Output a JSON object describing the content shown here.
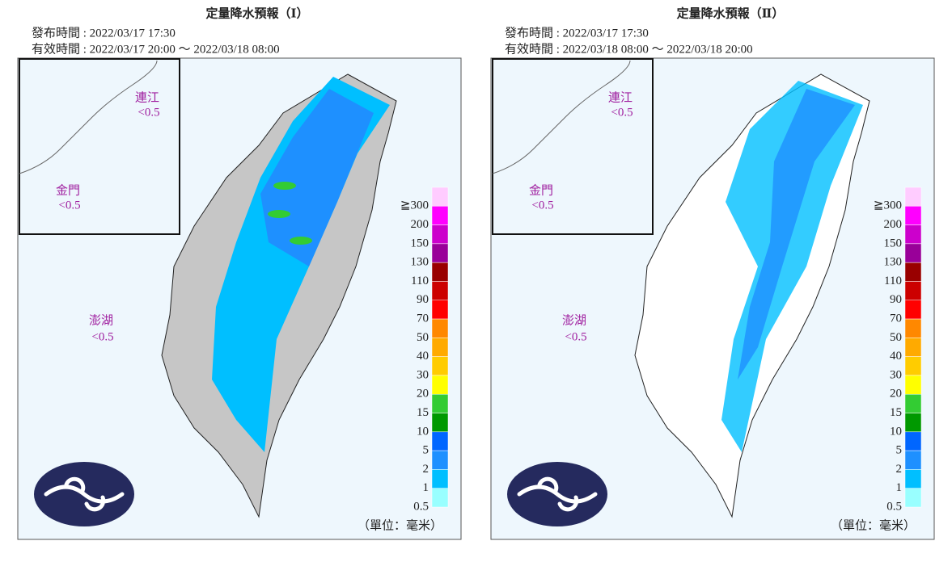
{
  "panels": [
    {
      "title": "定量降水預報（Ⅰ）",
      "issued": "發布時間 : 2022/03/17 17:30",
      "valid": "有效時間 : 2022/03/17 20:00 ～ 2022/03/18 08:00",
      "islands": [
        {
          "name": "連江",
          "value": "<0.5"
        },
        {
          "name": "金門",
          "value": "<0.5"
        },
        {
          "name": "澎湖",
          "value": "<0.5"
        }
      ],
      "unit": "（單位：毫米）"
    },
    {
      "title": "定量降水預報（Ⅱ）",
      "issued": "發布時間 : 2022/03/17 17:30",
      "valid": "有效時間 : 2022/03/18 08:00 ～ 2022/03/18 20:00",
      "islands": [
        {
          "name": "連江",
          "value": "<0.5"
        },
        {
          "name": "金門",
          "value": "<0.5"
        },
        {
          "name": "澎湖",
          "value": "<0.5"
        }
      ],
      "unit": "（單位：毫米）"
    }
  ],
  "legend": {
    "labels": [
      "≧300",
      "200",
      "150",
      "130",
      "110",
      "90",
      "70",
      "50",
      "40",
      "30",
      "20",
      "15",
      "10",
      "5",
      "2",
      "1",
      "0.5"
    ],
    "colors": [
      "#ffccff",
      "#ff00ff",
      "#cc00cc",
      "#990099",
      "#990000",
      "#cc0000",
      "#ff0000",
      "#ff8800",
      "#ffaa00",
      "#ffcc00",
      "#ffff00",
      "#33cc33",
      "#009900",
      "#0066ff",
      "#1e90ff",
      "#00bfff",
      "#99ffff"
    ]
  }
}
